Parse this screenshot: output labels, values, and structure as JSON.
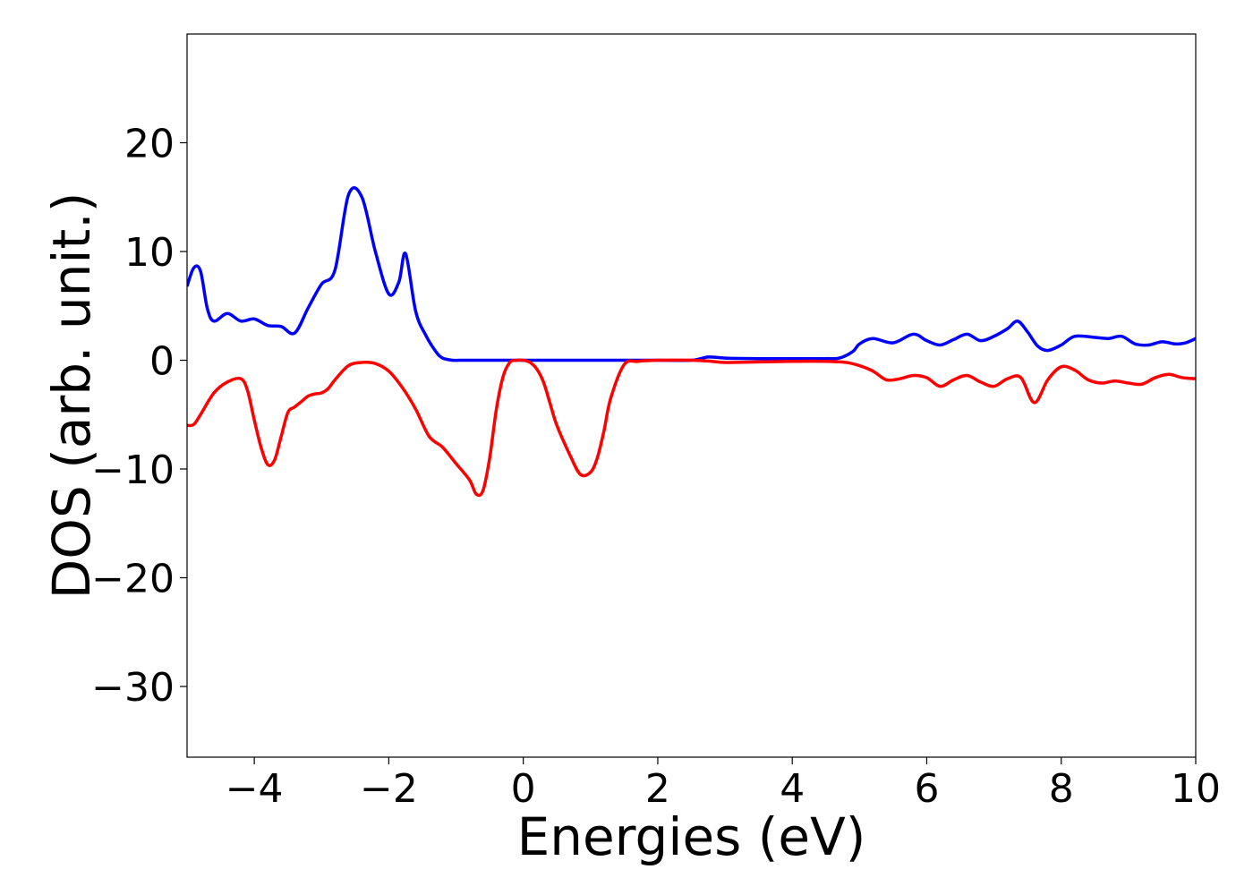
{
  "chart_data": {
    "type": "line",
    "title": "",
    "xlabel": "Energies (eV)",
    "ylabel": "DOS (arb. unit.)",
    "xlim": [
      -5,
      10
    ],
    "ylim": [
      -36.5,
      30
    ],
    "xticks": [
      -4,
      -2,
      0,
      2,
      4,
      6,
      8,
      10
    ],
    "yticks": [
      20,
      10,
      0,
      -10,
      -20,
      -30
    ],
    "grid": false,
    "legend": "none",
    "series": [
      {
        "color": "#0000ff",
        "x": [
          -5.0,
          -4.9,
          -4.8,
          -4.7,
          -4.6,
          -4.4,
          -4.2,
          -4.0,
          -3.8,
          -3.6,
          -3.4,
          -3.2,
          -3.0,
          -2.8,
          -2.6,
          -2.4,
          -2.2,
          -2.0,
          -1.85,
          -1.75,
          -1.6,
          -1.45,
          -1.3,
          -1.2,
          -1.05,
          -0.95,
          -0.85,
          -0.75,
          -0.6,
          -0.45,
          -0.3,
          -0.15,
          0.0,
          0.5,
          1.0,
          1.5,
          2.0,
          2.5,
          2.75,
          3.0,
          3.5,
          4.0,
          4.5,
          4.7,
          4.9,
          5.0,
          5.2,
          5.5,
          5.8,
          6.0,
          6.2,
          6.4,
          6.6,
          6.8,
          7.0,
          7.2,
          7.35,
          7.5,
          7.65,
          7.8,
          8.0,
          8.2,
          8.5,
          8.7,
          8.9,
          9.1,
          9.3,
          9.5,
          9.7,
          9.85,
          10.0
        ],
        "y": [
          6.8,
          8.5,
          8.2,
          4.8,
          3.6,
          4.3,
          3.6,
          3.8,
          3.2,
          3.1,
          2.5,
          4.8,
          7.0,
          8.3,
          15.2,
          15.0,
          10.0,
          6.1,
          7.2,
          9.8,
          4.5,
          2.3,
          0.8,
          0.2,
          0.0,
          0.0,
          0.0,
          0.0,
          0.0,
          0.0,
          0.0,
          0.0,
          0.0,
          0.0,
          0.0,
          0.0,
          0.0,
          0.0,
          0.3,
          0.2,
          0.15,
          0.15,
          0.15,
          0.2,
          0.8,
          1.5,
          2.0,
          1.6,
          2.4,
          1.8,
          1.4,
          1.9,
          2.4,
          1.8,
          2.2,
          2.9,
          3.6,
          2.6,
          1.3,
          0.9,
          1.4,
          2.2,
          2.1,
          2.0,
          2.2,
          1.5,
          1.4,
          1.7,
          1.5,
          1.6,
          2.0
        ]
      },
      {
        "color": "#ff0000",
        "x": [
          -5.0,
          -4.9,
          -4.8,
          -4.6,
          -4.4,
          -4.2,
          -4.1,
          -4.0,
          -3.9,
          -3.8,
          -3.7,
          -3.6,
          -3.5,
          -3.4,
          -3.3,
          -3.2,
          -3.1,
          -3.0,
          -2.9,
          -2.8,
          -2.6,
          -2.4,
          -2.2,
          -2.0,
          -1.8,
          -1.6,
          -1.4,
          -1.2,
          -1.0,
          -0.8,
          -0.7,
          -0.6,
          -0.5,
          -0.4,
          -0.3,
          -0.2,
          -0.1,
          0.0,
          0.1,
          0.2,
          0.3,
          0.4,
          0.5,
          0.7,
          0.85,
          1.0,
          1.1,
          1.2,
          1.3,
          1.5,
          1.7,
          2.0,
          2.5,
          2.8,
          3.0,
          3.5,
          4.0,
          4.5,
          4.8,
          5.0,
          5.2,
          5.4,
          5.6,
          5.8,
          6.0,
          6.2,
          6.4,
          6.6,
          6.8,
          7.0,
          7.2,
          7.4,
          7.6,
          7.8,
          8.0,
          8.2,
          8.4,
          8.6,
          8.8,
          9.0,
          9.2,
          9.4,
          9.6,
          9.8,
          10.0
        ],
        "y": [
          -6.0,
          -5.9,
          -5.0,
          -3.0,
          -2.0,
          -1.7,
          -2.8,
          -5.5,
          -8.0,
          -9.6,
          -9.2,
          -7.0,
          -4.8,
          -4.3,
          -3.8,
          -3.3,
          -3.1,
          -3.0,
          -2.6,
          -1.8,
          -0.5,
          -0.2,
          -0.3,
          -1.0,
          -2.5,
          -4.5,
          -7.0,
          -8.0,
          -9.5,
          -11.0,
          -12.3,
          -12.0,
          -9.0,
          -4.5,
          -1.5,
          -0.2,
          0.0,
          0.0,
          -0.2,
          -0.8,
          -2.0,
          -4.0,
          -6.0,
          -8.8,
          -10.5,
          -10.3,
          -9.0,
          -6.5,
          -3.5,
          -0.4,
          -0.1,
          0.0,
          0.0,
          -0.1,
          -0.2,
          -0.15,
          -0.1,
          -0.1,
          -0.2,
          -0.5,
          -1.0,
          -1.8,
          -1.7,
          -1.4,
          -1.6,
          -2.4,
          -1.8,
          -1.4,
          -2.0,
          -2.4,
          -1.7,
          -1.6,
          -3.9,
          -1.8,
          -0.6,
          -0.9,
          -1.8,
          -2.1,
          -1.9,
          -2.1,
          -2.2,
          -1.6,
          -1.3,
          -1.6,
          -1.7
        ]
      }
    ]
  }
}
